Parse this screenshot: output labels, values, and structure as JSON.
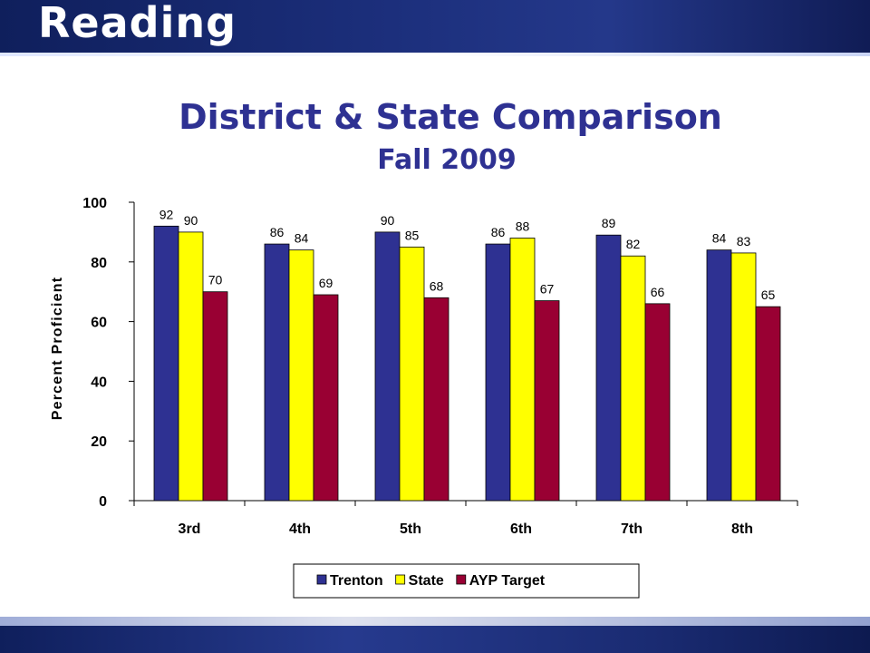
{
  "slide": {
    "title": "Reading"
  },
  "chart_data": {
    "type": "bar",
    "title": "District & State Comparison",
    "subtitle": "Fall 2009",
    "ylabel": "Percent Proficient",
    "xlabel": "",
    "ylim": [
      0,
      100
    ],
    "yticks": [
      "0",
      "20",
      "40",
      "60",
      "80",
      "100"
    ],
    "categories": [
      "3rd",
      "4th",
      "5th",
      "6th",
      "7th",
      "8th"
    ],
    "series": [
      {
        "name": "Trenton",
        "color": "#2e3192",
        "values": [
          92,
          86,
          90,
          86,
          89,
          84
        ]
      },
      {
        "name": "State",
        "color": "#ffff00",
        "values": [
          90,
          84,
          85,
          88,
          82,
          83
        ]
      },
      {
        "name": "AYP Target",
        "color": "#990033",
        "values": [
          70,
          69,
          68,
          67,
          66,
          65
        ]
      }
    ],
    "grid": false,
    "legend": "bottom",
    "colors": {
      "title": "#2e3192",
      "axis": "#000000",
      "bar_outline": "#000000"
    }
  }
}
